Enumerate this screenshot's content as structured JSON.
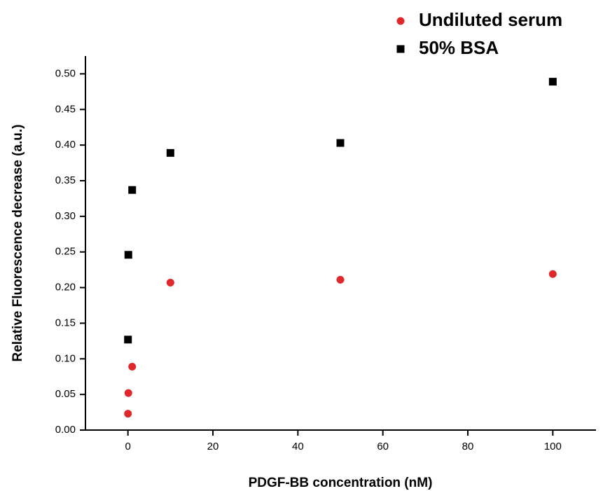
{
  "chart_data": {
    "type": "scatter",
    "x_label": "PDGF-BB concentration (nM)",
    "y_label": "Relative Fluorescence decrease (a.u.)",
    "xlim": [
      -10,
      110
    ],
    "xticks": [
      0,
      20,
      40,
      60,
      80,
      100
    ],
    "ylim": [
      0,
      0.525
    ],
    "yticks": [
      {
        "value": 0,
        "label": "0.00"
      },
      {
        "value": 0.05,
        "label": "0.05"
      },
      {
        "value": 0.1,
        "label": "0.10"
      },
      {
        "value": 0.15,
        "label": "0.15"
      },
      {
        "value": 0.2,
        "label": "0.20"
      },
      {
        "value": 0.25,
        "label": "0.25"
      },
      {
        "value": 0.3,
        "label": "0.30"
      },
      {
        "value": 0.35,
        "label": "0.35"
      },
      {
        "value": 0.4,
        "label": "0.40"
      },
      {
        "value": 0.45,
        "label": "0.45"
      },
      {
        "value": 0.5,
        "label": "0.50"
      }
    ],
    "series": [
      {
        "name": "Undiluted serum",
        "color": "#e0282c",
        "marker": "circle",
        "x": [
          0.01,
          0.1,
          1,
          10,
          50,
          100
        ],
        "values": [
          0.023,
          0.052,
          0.089,
          0.207,
          0.211,
          0.219
        ]
      },
      {
        "name": "50% BSA",
        "color": "#000000",
        "marker": "square",
        "x": [
          0.01,
          0.1,
          1,
          10,
          50,
          100
        ],
        "values": [
          0.127,
          0.246,
          0.337,
          0.389,
          0.403,
          0.489
        ]
      }
    ]
  }
}
